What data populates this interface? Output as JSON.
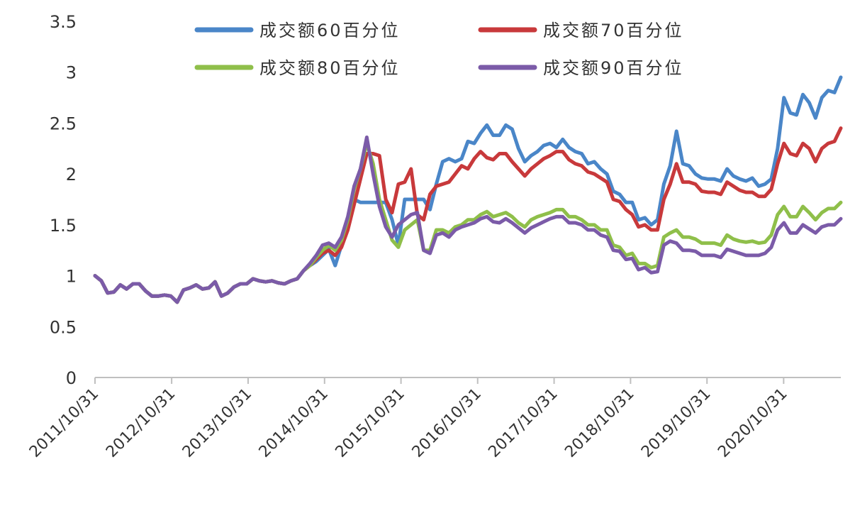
{
  "chart_data": {
    "type": "line",
    "title": "",
    "xlabel": "",
    "ylabel": "",
    "ylim": [
      0,
      3.5
    ],
    "yticks": [
      "0",
      "0.5",
      "1",
      "1.5",
      "2",
      "2.5",
      "3",
      "3.5"
    ],
    "xticks": [
      "2011/10/31",
      "2012/10/31",
      "2013/10/31",
      "2014/10/31",
      "2015/10/31",
      "2016/10/31",
      "2017/10/31",
      "2018/10/31",
      "2019/10/31",
      "2020/10/31"
    ],
    "x_start": "2011/10/31",
    "x_end": "2021/07/31",
    "grid": false,
    "legend_position": "top",
    "series": [
      {
        "name": "成交额60百分位",
        "color": "#4a86c8",
        "values": [
          1.0,
          0.95,
          0.83,
          0.84,
          0.91,
          0.87,
          0.92,
          0.92,
          0.85,
          0.8,
          0.8,
          0.81,
          0.8,
          0.74,
          0.86,
          0.88,
          0.91,
          0.87,
          0.88,
          0.94,
          0.8,
          0.83,
          0.89,
          0.92,
          0.92,
          0.97,
          0.95,
          0.94,
          0.95,
          0.93,
          0.92,
          0.95,
          0.97,
          1.05,
          1.1,
          1.14,
          1.2,
          1.26,
          1.1,
          1.3,
          1.5,
          1.75,
          1.72,
          1.72,
          1.72,
          1.72,
          1.72,
          1.55,
          1.3,
          1.75,
          1.75,
          1.75,
          1.75,
          1.65,
          1.9,
          2.12,
          2.15,
          2.12,
          2.15,
          2.32,
          2.3,
          2.4,
          2.48,
          2.38,
          2.38,
          2.48,
          2.44,
          2.25,
          2.12,
          2.18,
          2.22,
          2.28,
          2.3,
          2.26,
          2.34,
          2.26,
          2.22,
          2.2,
          2.1,
          2.12,
          2.05,
          2.0,
          1.83,
          1.8,
          1.72,
          1.72,
          1.55,
          1.57,
          1.5,
          1.55,
          1.9,
          2.08,
          2.42,
          2.1,
          2.08,
          2.0,
          1.96,
          1.95,
          1.95,
          1.93,
          2.05,
          1.98,
          1.95,
          1.93,
          1.96,
          1.88,
          1.9,
          1.95,
          2.25,
          2.75,
          2.6,
          2.58,
          2.78,
          2.7,
          2.55,
          2.75,
          2.82,
          2.8,
          2.95
        ]
      },
      {
        "name": "成交额70百分位",
        "color": "#c8393b",
        "values": [
          1.0,
          0.95,
          0.83,
          0.84,
          0.91,
          0.87,
          0.92,
          0.92,
          0.85,
          0.8,
          0.8,
          0.81,
          0.8,
          0.74,
          0.86,
          0.88,
          0.91,
          0.87,
          0.88,
          0.94,
          0.8,
          0.83,
          0.89,
          0.92,
          0.92,
          0.97,
          0.95,
          0.94,
          0.95,
          0.93,
          0.92,
          0.95,
          0.97,
          1.05,
          1.1,
          1.16,
          1.22,
          1.25,
          1.2,
          1.28,
          1.45,
          1.7,
          1.95,
          2.2,
          2.2,
          2.18,
          1.75,
          1.62,
          1.9,
          1.92,
          2.05,
          1.6,
          1.55,
          1.8,
          1.88,
          1.9,
          1.92,
          2.0,
          2.08,
          2.05,
          2.15,
          2.22,
          2.16,
          2.14,
          2.2,
          2.2,
          2.12,
          2.05,
          1.98,
          2.05,
          2.1,
          2.15,
          2.18,
          2.22,
          2.22,
          2.14,
          2.1,
          2.08,
          2.02,
          2.0,
          1.96,
          1.92,
          1.75,
          1.73,
          1.65,
          1.6,
          1.48,
          1.5,
          1.45,
          1.45,
          1.75,
          1.9,
          2.1,
          1.92,
          1.92,
          1.9,
          1.83,
          1.82,
          1.82,
          1.8,
          1.92,
          1.88,
          1.84,
          1.82,
          1.82,
          1.78,
          1.78,
          1.85,
          2.1,
          2.3,
          2.2,
          2.18,
          2.3,
          2.25,
          2.12,
          2.25,
          2.3,
          2.32,
          2.45
        ]
      },
      {
        "name": "成交额80百分位",
        "color": "#8fbf4a",
        "values": [
          1.0,
          0.95,
          0.83,
          0.84,
          0.91,
          0.87,
          0.92,
          0.92,
          0.85,
          0.8,
          0.8,
          0.81,
          0.8,
          0.74,
          0.86,
          0.88,
          0.91,
          0.87,
          0.88,
          0.94,
          0.8,
          0.83,
          0.89,
          0.92,
          0.92,
          0.97,
          0.95,
          0.94,
          0.95,
          0.93,
          0.92,
          0.95,
          0.97,
          1.05,
          1.1,
          1.18,
          1.25,
          1.3,
          1.25,
          1.35,
          1.55,
          1.85,
          2.05,
          2.3,
          2.1,
          1.75,
          1.55,
          1.35,
          1.28,
          1.45,
          1.5,
          1.55,
          1.25,
          1.25,
          1.45,
          1.45,
          1.42,
          1.48,
          1.5,
          1.55,
          1.55,
          1.6,
          1.63,
          1.58,
          1.6,
          1.62,
          1.58,
          1.52,
          1.48,
          1.55,
          1.58,
          1.6,
          1.62,
          1.65,
          1.65,
          1.58,
          1.58,
          1.55,
          1.5,
          1.5,
          1.45,
          1.45,
          1.3,
          1.28,
          1.2,
          1.22,
          1.12,
          1.12,
          1.08,
          1.1,
          1.38,
          1.42,
          1.45,
          1.38,
          1.38,
          1.36,
          1.32,
          1.32,
          1.32,
          1.3,
          1.4,
          1.36,
          1.34,
          1.33,
          1.34,
          1.32,
          1.33,
          1.4,
          1.6,
          1.68,
          1.58,
          1.58,
          1.68,
          1.62,
          1.55,
          1.62,
          1.66,
          1.66,
          1.72
        ]
      },
      {
        "name": "成交额90百分位",
        "color": "#7b5ba8",
        "values": [
          1.0,
          0.95,
          0.83,
          0.84,
          0.91,
          0.87,
          0.92,
          0.92,
          0.85,
          0.8,
          0.8,
          0.81,
          0.8,
          0.74,
          0.86,
          0.88,
          0.91,
          0.87,
          0.88,
          0.94,
          0.8,
          0.83,
          0.89,
          0.92,
          0.92,
          0.97,
          0.95,
          0.94,
          0.95,
          0.93,
          0.92,
          0.95,
          0.97,
          1.05,
          1.12,
          1.2,
          1.3,
          1.32,
          1.28,
          1.38,
          1.58,
          1.88,
          2.05,
          2.36,
          2.0,
          1.68,
          1.48,
          1.38,
          1.5,
          1.55,
          1.6,
          1.62,
          1.25,
          1.22,
          1.4,
          1.42,
          1.38,
          1.45,
          1.48,
          1.5,
          1.52,
          1.56,
          1.58,
          1.53,
          1.52,
          1.56,
          1.52,
          1.47,
          1.42,
          1.47,
          1.5,
          1.53,
          1.56,
          1.58,
          1.58,
          1.52,
          1.52,
          1.5,
          1.45,
          1.45,
          1.4,
          1.38,
          1.25,
          1.24,
          1.16,
          1.17,
          1.06,
          1.08,
          1.03,
          1.04,
          1.3,
          1.34,
          1.32,
          1.25,
          1.25,
          1.24,
          1.2,
          1.2,
          1.2,
          1.18,
          1.26,
          1.24,
          1.22,
          1.2,
          1.2,
          1.2,
          1.22,
          1.28,
          1.45,
          1.52,
          1.42,
          1.42,
          1.5,
          1.46,
          1.42,
          1.48,
          1.5,
          1.5,
          1.56
        ]
      }
    ]
  }
}
